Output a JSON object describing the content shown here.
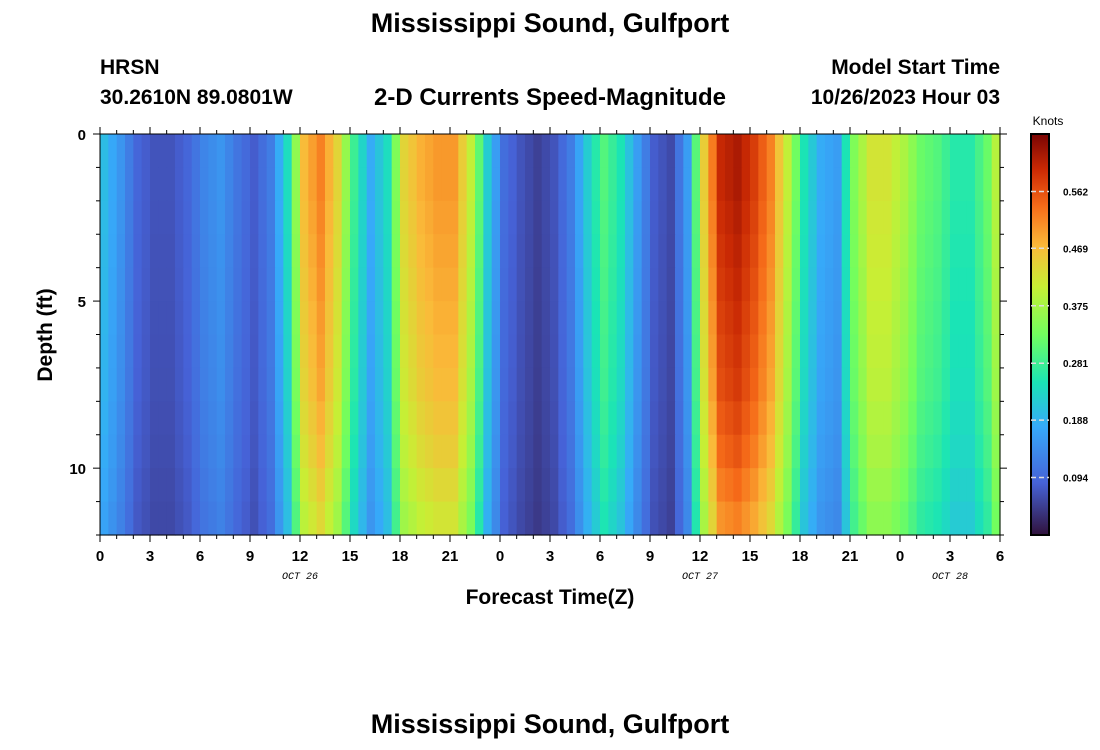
{
  "header": {
    "title": "Mississippi Sound, Gulfport",
    "station": "HRSN",
    "coords": "30.2610N  89.0801W",
    "subtitle": "2-D Currents Speed-Magnitude",
    "model_start_label": "Model Start Time",
    "model_start_value": "10/26/2023 Hour 03"
  },
  "footer": {
    "title": "Mississippi Sound, Gulfport"
  },
  "chart_data": {
    "type": "heatmap",
    "title": "2-D Currents Speed-Magnitude",
    "xlabel": "Forecast Time(Z)",
    "ylabel": "Depth (ft)",
    "x_tick_labels": [
      "0",
      "3",
      "6",
      "9",
      "12",
      "15",
      "18",
      "21",
      "0",
      "3",
      "6",
      "9",
      "12",
      "15",
      "18",
      "21",
      "0",
      "3",
      "6"
    ],
    "date_labels": [
      "OCT 26",
      "OCT 27",
      "OCT 28"
    ],
    "y_tick_labels": [
      "0",
      "5",
      "10"
    ],
    "ylim": [
      0,
      12
    ],
    "y_inverted": true,
    "colorbar": {
      "label": "Knots",
      "ticks": [
        "0.094",
        "0.188",
        "0.281",
        "0.375",
        "0.469",
        "0.562"
      ],
      "range": [
        0,
        0.656
      ],
      "colormap": "turbo"
    },
    "grid": false,
    "depth_levels_ft": [
      0.5,
      1.5,
      2.5,
      3.5,
      4.5,
      5.5,
      6.5,
      7.5,
      8.5,
      9.5,
      10.5,
      11.5
    ],
    "x_hours_since_start": "0..54 hourly",
    "profile_hours_since_start": [
      0,
      1,
      2,
      3,
      4,
      5,
      6,
      7,
      8,
      9,
      10,
      11,
      12,
      13,
      14,
      15,
      16,
      17,
      18,
      19,
      20,
      21,
      22,
      23,
      24,
      25,
      26,
      27,
      28,
      29,
      30,
      31,
      32,
      33,
      34,
      35,
      36,
      37,
      38,
      39,
      40,
      41,
      42,
      43,
      44,
      45,
      46,
      47,
      48,
      49,
      50,
      51,
      52,
      53,
      54
    ],
    "surface_speed_knots": [
      0.2,
      0.15,
      0.09,
      0.07,
      0.07,
      0.09,
      0.13,
      0.15,
      0.11,
      0.08,
      0.12,
      0.24,
      0.47,
      0.52,
      0.44,
      0.28,
      0.18,
      0.24,
      0.44,
      0.48,
      0.5,
      0.5,
      0.4,
      0.22,
      0.1,
      0.07,
      0.05,
      0.07,
      0.12,
      0.22,
      0.3,
      0.25,
      0.16,
      0.08,
      0.06,
      0.16,
      0.45,
      0.6,
      0.62,
      0.58,
      0.52,
      0.4,
      0.25,
      0.18,
      0.16,
      0.34,
      0.42,
      0.42,
      0.38,
      0.32,
      0.3,
      0.26,
      0.26,
      0.32,
      0.46
    ],
    "depth_speed_factor": [
      1.0,
      1.0,
      0.99,
      0.98,
      0.97,
      0.96,
      0.95,
      0.94,
      0.92,
      0.9,
      0.87,
      0.84
    ]
  }
}
